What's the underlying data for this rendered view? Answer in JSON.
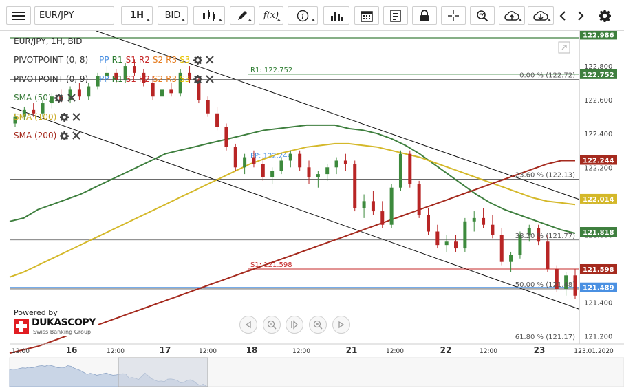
{
  "toolbar": {
    "symbol": "EUR/JPY",
    "timeframe": "1H",
    "side": "BID",
    "func_label": "f(x)"
  },
  "legend": {
    "title": "EUR/JPY, 1H, BID",
    "pivot_label_1": "PIVOTPOINT (0, 8)",
    "pivot_label_2": "PIVOTPOINT (0, 9)",
    "pivot_levels": [
      "PP",
      "R1",
      "S1",
      "R2",
      "S2",
      "R3",
      "S3"
    ],
    "sma_50": "SMA (50)",
    "sma_100": "SMA (100)",
    "sma_200": "SMA (200)"
  },
  "branding": {
    "powered_by": "Powered by",
    "name": "DUKASCOPY",
    "tagline": "Swiss Banking Group"
  },
  "colors": {
    "pp": "#4a90e2",
    "r1": "#2e7d32",
    "s1": "#c62828",
    "r2": "#c62828",
    "s2": "#e67e22",
    "r3": "#e67e22",
    "s3": "#e6c200",
    "sma50": "#3e7f3e",
    "sma100": "#d4b829",
    "sma200": "#a52a1e",
    "up_candle": "#3d8a3d",
    "down_candle": "#b82525"
  },
  "chart_data": {
    "type": "candlestick",
    "title": "EUR/JPY, 1H, BID",
    "ylim": [
      121.17,
      123.0
    ],
    "y_ticks": [
      121.2,
      121.4,
      121.6,
      121.8,
      122.0,
      122.2,
      122.4,
      122.6,
      122.8
    ],
    "y_tick_labels": [
      "121.200",
      "121.400",
      "121.600",
      "121.800",
      "122.000",
      "122.200",
      "122.400",
      "122.600",
      "122.800"
    ],
    "x_tick_labels": [
      "12:00",
      "16",
      "12:00",
      "17",
      "12:00",
      "18",
      "12:00",
      "21",
      "12:00",
      "22",
      "12:00",
      "23",
      "12",
      "23.01.2020"
    ],
    "price_tags": [
      {
        "value": "122.986",
        "color": "#3e7f3e"
      },
      {
        "value": "122.752",
        "color": "#3e7f3e"
      },
      {
        "value": "122.244",
        "color": "#a52a1e"
      },
      {
        "value": "122.014",
        "color": "#d4b829"
      },
      {
        "value": "121.818",
        "color": "#3e7f3e"
      },
      {
        "value": "121.598",
        "color": "#a52a1e"
      },
      {
        "value": "121.489",
        "color": "#4a90e2"
      }
    ],
    "horizontal_levels": [
      {
        "label": "R1: 122.752",
        "value": 122.752,
        "color": "#2e7d32"
      },
      {
        "label": "PP: 122.244",
        "value": 122.244,
        "color": "#4a90e2"
      },
      {
        "label": "S1: 121.598",
        "value": 121.598,
        "color": "#c62828"
      }
    ],
    "fibonacci": [
      {
        "label": "0.00 % (122.72)",
        "value": 122.72
      },
      {
        "label": "23.60 % (122.13)",
        "value": 122.13
      },
      {
        "label": "38.20 % (121.77)",
        "value": 121.77
      },
      {
        "label": "50.00 % (121.48)",
        "value": 121.48
      },
      {
        "label": "61.80 % (121.17)",
        "value": 121.17
      }
    ],
    "series": [
      {
        "name": "SMA (50)",
        "values": [
          121.88,
          121.9,
          121.95,
          121.98,
          122.01,
          122.04,
          122.08,
          122.12,
          122.16,
          122.2,
          122.24,
          122.28,
          122.3,
          122.32,
          122.34,
          122.36,
          122.38,
          122.4,
          122.42,
          122.43,
          122.44,
          122.45,
          122.45,
          122.45,
          122.43,
          122.42,
          122.4,
          122.37,
          122.33,
          122.28,
          122.22,
          122.16,
          122.1,
          122.04,
          121.99,
          121.95,
          121.92,
          121.89,
          121.86,
          121.83,
          121.81
        ]
      },
      {
        "name": "SMA (100)",
        "values": [
          121.55,
          121.58,
          121.62,
          121.66,
          121.7,
          121.74,
          121.78,
          121.82,
          121.86,
          121.9,
          121.94,
          121.98,
          122.02,
          122.06,
          122.1,
          122.14,
          122.18,
          122.22,
          122.25,
          122.28,
          122.3,
          122.32,
          122.33,
          122.34,
          122.34,
          122.33,
          122.32,
          122.3,
          122.28,
          122.26,
          122.23,
          122.2,
          122.17,
          122.14,
          122.11,
          122.08,
          122.05,
          122.02,
          122.0,
          121.99,
          121.98
        ]
      },
      {
        "name": "SMA (200)",
        "values": [
          121.1,
          121.12,
          121.14,
          121.17,
          121.2,
          121.23,
          121.26,
          121.29,
          121.32,
          121.35,
          121.38,
          121.41,
          121.44,
          121.47,
          121.5,
          121.53,
          121.56,
          121.59,
          121.62,
          121.65,
          121.68,
          121.71,
          121.74,
          121.77,
          121.8,
          121.83,
          121.86,
          121.89,
          121.92,
          121.95,
          121.98,
          122.01,
          122.04,
          122.07,
          122.1,
          122.13,
          122.16,
          122.19,
          122.22,
          122.24,
          122.24
        ]
      }
    ],
    "candles": [
      [
        122.46,
        122.52,
        122.44,
        122.5
      ],
      [
        122.5,
        122.56,
        122.48,
        122.54
      ],
      [
        122.54,
        122.58,
        122.5,
        122.52
      ],
      [
        122.52,
        122.6,
        122.5,
        122.58
      ],
      [
        122.58,
        122.64,
        122.55,
        122.62
      ],
      [
        122.62,
        122.66,
        122.58,
        122.6
      ],
      [
        122.6,
        122.68,
        122.58,
        122.66
      ],
      [
        122.66,
        122.7,
        122.6,
        122.62
      ],
      [
        122.62,
        122.7,
        122.6,
        122.68
      ],
      [
        122.68,
        122.76,
        122.66,
        122.74
      ],
      [
        122.74,
        122.8,
        122.7,
        122.76
      ],
      [
        122.76,
        122.78,
        122.7,
        122.72
      ],
      [
        122.72,
        122.82,
        122.7,
        122.8
      ],
      [
        122.8,
        122.84,
        122.74,
        122.76
      ],
      [
        122.76,
        122.78,
        122.68,
        122.7
      ],
      [
        122.7,
        122.74,
        122.6,
        122.62
      ],
      [
        122.62,
        122.68,
        122.58,
        122.66
      ],
      [
        122.66,
        122.7,
        122.62,
        122.64
      ],
      [
        122.64,
        122.78,
        122.62,
        122.76
      ],
      [
        122.76,
        122.8,
        122.7,
        122.72
      ],
      [
        122.72,
        122.74,
        122.58,
        122.6
      ],
      [
        122.6,
        122.62,
        122.5,
        122.52
      ],
      [
        122.52,
        122.56,
        122.42,
        122.44
      ],
      [
        122.44,
        122.46,
        122.3,
        122.32
      ],
      [
        122.32,
        122.34,
        122.18,
        122.2
      ],
      [
        122.2,
        122.28,
        122.16,
        122.26
      ],
      [
        122.26,
        122.3,
        122.2,
        122.22
      ],
      [
        122.22,
        122.26,
        122.12,
        122.14
      ],
      [
        122.14,
        122.2,
        122.1,
        122.18
      ],
      [
        122.18,
        122.26,
        122.16,
        122.24
      ],
      [
        122.24,
        122.3,
        122.2,
        122.28
      ],
      [
        122.28,
        122.3,
        122.18,
        122.2
      ],
      [
        122.2,
        122.24,
        122.1,
        122.14
      ],
      [
        122.14,
        122.18,
        122.08,
        122.16
      ],
      [
        122.16,
        122.22,
        122.12,
        122.2
      ],
      [
        122.2,
        122.26,
        122.16,
        122.24
      ],
      [
        122.24,
        122.28,
        122.18,
        122.22
      ],
      [
        122.22,
        122.24,
        121.94,
        121.96
      ],
      [
        121.96,
        122.04,
        121.9,
        122.0
      ],
      [
        122.0,
        122.06,
        121.92,
        121.94
      ],
      [
        121.94,
        122.0,
        121.84,
        121.86
      ],
      [
        121.86,
        122.1,
        121.84,
        122.08
      ],
      [
        122.08,
        122.3,
        122.06,
        122.28
      ],
      [
        122.28,
        122.3,
        122.08,
        122.1
      ],
      [
        122.1,
        122.12,
        121.9,
        121.92
      ],
      [
        121.92,
        121.96,
        121.8,
        121.82
      ],
      [
        121.82,
        121.86,
        121.72,
        121.74
      ],
      [
        121.74,
        121.8,
        121.7,
        121.76
      ],
      [
        121.76,
        121.8,
        121.7,
        121.72
      ],
      [
        121.72,
        121.9,
        121.7,
        121.88
      ],
      [
        121.88,
        121.94,
        121.82,
        121.9
      ],
      [
        121.9,
        121.96,
        121.84,
        121.86
      ],
      [
        121.86,
        121.92,
        121.78,
        121.8
      ],
      [
        121.8,
        121.84,
        121.62,
        121.64
      ],
      [
        121.64,
        121.7,
        121.58,
        121.68
      ],
      [
        121.68,
        121.82,
        121.66,
        121.8
      ],
      [
        121.8,
        121.86,
        121.76,
        121.84
      ],
      [
        121.84,
        121.86,
        121.74,
        121.76
      ],
      [
        121.76,
        121.8,
        121.58,
        121.6
      ],
      [
        121.6,
        121.62,
        121.46,
        121.48
      ],
      [
        121.48,
        121.58,
        121.44,
        121.56
      ],
      [
        121.56,
        121.6,
        121.42,
        121.44
      ]
    ]
  }
}
